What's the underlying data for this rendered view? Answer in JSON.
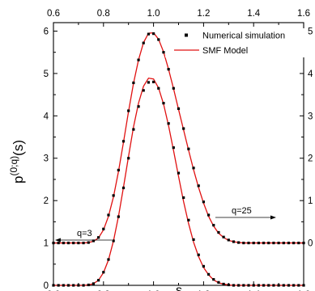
{
  "chart_data": {
    "type": "line",
    "xlabel": "s",
    "ylabel_main": "p",
    "ylabel_sup": "(0;q)",
    "ylabel_tail": "(s)",
    "xlim": [
      0.6,
      1.6
    ],
    "ylim_left": [
      0,
      6.2
    ],
    "x_ticks": [
      "0.6",
      "0.8",
      "1.0",
      "1.2",
      "1.4",
      "1.6"
    ],
    "y_ticks_left": [
      "0",
      "1",
      "2",
      "3",
      "4",
      "5",
      "6"
    ],
    "y_ticks_right": [
      "0",
      "1",
      "2",
      "3",
      "4",
      "5"
    ],
    "grid": false,
    "legend": {
      "placement": "top-right",
      "entries": [
        {
          "label": "Numerical simulation",
          "marker": "square"
        },
        {
          "label": "SMF Model",
          "marker": "line"
        }
      ]
    },
    "annotations": [
      {
        "text": "q=25",
        "arrow": "right"
      },
      {
        "text": "q=3",
        "arrow": "left"
      }
    ],
    "series": [
      {
        "label": "q=3",
        "baseline": 0,
        "simulation_x": [
          0.6,
          0.62,
          0.64,
          0.66,
          0.68,
          0.7,
          0.72,
          0.74,
          0.76,
          0.78,
          0.8,
          0.82,
          0.84,
          0.86,
          0.88,
          0.9,
          0.92,
          0.94,
          0.96,
          0.98,
          1.0,
          1.02,
          1.04,
          1.06,
          1.08,
          1.1,
          1.12,
          1.14,
          1.16,
          1.18,
          1.2,
          1.22,
          1.24,
          1.26,
          1.28,
          1.3,
          1.32,
          1.34,
          1.36,
          1.38,
          1.4,
          1.42,
          1.44,
          1.46,
          1.48,
          1.5,
          1.52,
          1.54,
          1.56,
          1.58,
          1.6
        ],
        "simulation_y": [
          0,
          0,
          0,
          0,
          0,
          0,
          0,
          0.01,
          0.04,
          0.12,
          0.31,
          0.61,
          1.05,
          1.62,
          2.3,
          3.0,
          3.68,
          4.22,
          4.6,
          4.79,
          4.8,
          4.65,
          4.3,
          3.82,
          3.25,
          2.65,
          2.07,
          1.54,
          1.08,
          0.72,
          0.45,
          0.26,
          0.14,
          0.07,
          0.03,
          0.01,
          0,
          0,
          0,
          0,
          0,
          0,
          0,
          0,
          0,
          0,
          0,
          0,
          0,
          0,
          0
        ],
        "model_x": [
          0.6,
          0.62,
          0.64,
          0.66,
          0.68,
          0.7,
          0.72,
          0.74,
          0.76,
          0.78,
          0.8,
          0.82,
          0.84,
          0.86,
          0.88,
          0.9,
          0.92,
          0.94,
          0.96,
          0.98,
          1.0,
          1.02,
          1.04,
          1.06,
          1.08,
          1.1,
          1.12,
          1.14,
          1.16,
          1.18,
          1.2,
          1.22,
          1.24,
          1.26,
          1.28,
          1.3,
          1.32,
          1.34,
          1.36,
          1.38,
          1.4,
          1.42,
          1.44,
          1.46,
          1.48,
          1.5,
          1.52,
          1.54,
          1.56,
          1.58,
          1.6
        ],
        "model_y": [
          0,
          0,
          0,
          0,
          0,
          0,
          0,
          0.01,
          0.04,
          0.12,
          0.3,
          0.6,
          1.05,
          1.63,
          2.32,
          3.04,
          3.74,
          4.3,
          4.7,
          4.89,
          4.87,
          4.66,
          4.28,
          3.77,
          3.18,
          2.57,
          1.98,
          1.46,
          1.02,
          0.68,
          0.42,
          0.25,
          0.13,
          0.06,
          0.03,
          0.01,
          0,
          0,
          0,
          0,
          0,
          0,
          0,
          0,
          0,
          0,
          0,
          0,
          0,
          0,
          0
        ]
      },
      {
        "label": "q=25",
        "baseline": 1,
        "simulation_x": [
          0.6,
          0.62,
          0.64,
          0.66,
          0.68,
          0.7,
          0.72,
          0.74,
          0.76,
          0.78,
          0.8,
          0.82,
          0.84,
          0.86,
          0.88,
          0.9,
          0.92,
          0.94,
          0.96,
          0.98,
          1.0,
          1.02,
          1.04,
          1.06,
          1.08,
          1.1,
          1.12,
          1.14,
          1.16,
          1.18,
          1.2,
          1.22,
          1.24,
          1.26,
          1.28,
          1.3,
          1.32,
          1.34,
          1.36,
          1.38,
          1.4,
          1.42,
          1.44,
          1.46,
          1.48,
          1.5,
          1.52,
          1.54,
          1.56,
          1.58,
          1.6
        ],
        "simulation_y": [
          1,
          1,
          1,
          1,
          1,
          1,
          1,
          1.01,
          1.05,
          1.13,
          1.33,
          1.66,
          2.12,
          2.72,
          3.4,
          4.12,
          4.78,
          5.32,
          5.72,
          5.93,
          5.94,
          5.8,
          5.5,
          5.1,
          4.65,
          4.17,
          3.7,
          3.22,
          2.77,
          2.35,
          1.97,
          1.66,
          1.42,
          1.25,
          1.14,
          1.07,
          1.03,
          1.01,
          1,
          1,
          1,
          1,
          1,
          1,
          1,
          1,
          1,
          1,
          1,
          1,
          1
        ],
        "model_x": [
          0.6,
          0.62,
          0.64,
          0.66,
          0.68,
          0.7,
          0.72,
          0.74,
          0.76,
          0.78,
          0.8,
          0.82,
          0.84,
          0.86,
          0.88,
          0.9,
          0.92,
          0.94,
          0.96,
          0.98,
          1.0,
          1.02,
          1.04,
          1.06,
          1.08,
          1.1,
          1.12,
          1.14,
          1.16,
          1.18,
          1.2,
          1.22,
          1.24,
          1.26,
          1.28,
          1.3,
          1.32,
          1.34,
          1.36,
          1.38,
          1.4,
          1.42,
          1.44,
          1.46,
          1.48,
          1.5,
          1.52,
          1.54,
          1.56,
          1.58,
          1.6
        ],
        "model_y": [
          1,
          1,
          1,
          1,
          1,
          1,
          1,
          1.01,
          1.04,
          1.12,
          1.31,
          1.63,
          2.09,
          2.69,
          3.38,
          4.1,
          4.77,
          5.32,
          5.73,
          5.95,
          5.96,
          5.81,
          5.51,
          5.1,
          4.64,
          4.15,
          3.67,
          3.19,
          2.73,
          2.31,
          1.94,
          1.63,
          1.4,
          1.23,
          1.13,
          1.06,
          1.03,
          1.01,
          1,
          1,
          1,
          1,
          1,
          1,
          1,
          1,
          1,
          1,
          1,
          1,
          1
        ]
      }
    ],
    "colors": {
      "model_line": "#e01010",
      "simulation_marker": "#000000",
      "axis": "#000000"
    }
  }
}
